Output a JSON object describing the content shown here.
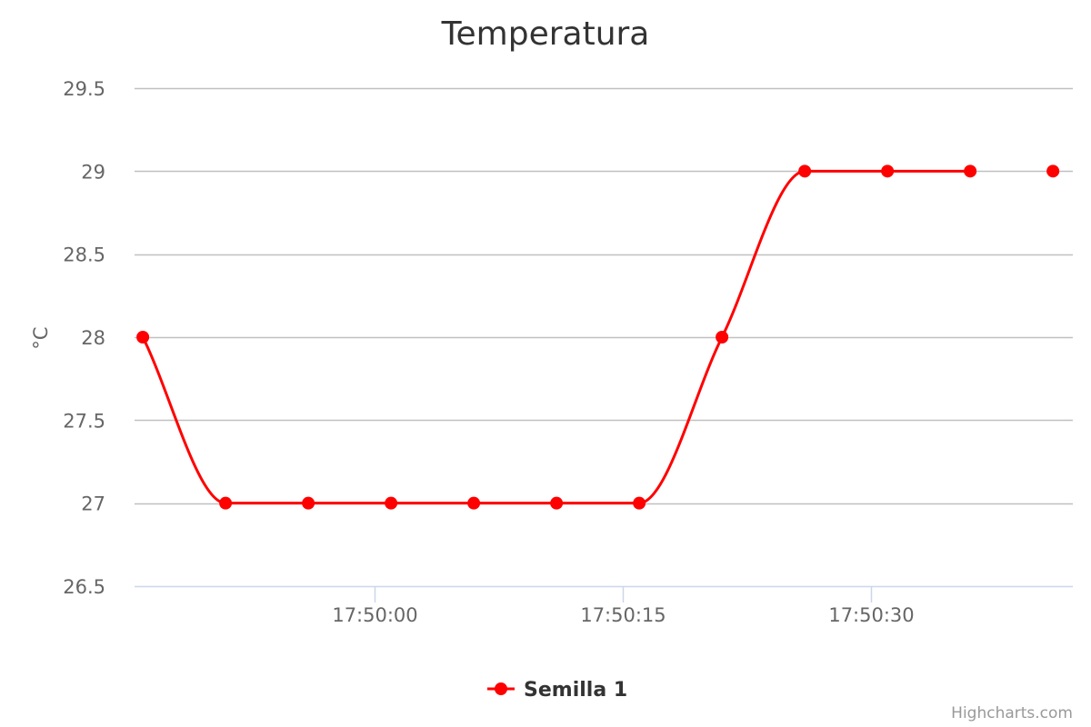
{
  "chart_data": {
    "type": "line",
    "title": "Temperatura",
    "ylabel": "°C",
    "xlabel": "",
    "ylim": [
      26.5,
      29.5
    ],
    "yticks": [
      26.5,
      27,
      27.5,
      28,
      28.5,
      29,
      29.5
    ],
    "ytick_labels": [
      "26.5",
      "27",
      "27.5",
      "28",
      "28.5",
      "29",
      "29.5"
    ],
    "xlim": [
      "17:49:45.5",
      "17:50:42.2"
    ],
    "xticks": [
      "17:50:00",
      "17:50:15",
      "17:50:30"
    ],
    "grid": true,
    "legend_position": "bottom-center",
    "series": [
      {
        "name": "Semilla 1",
        "color": "#ff0000",
        "x": [
          "17:49:46",
          "17:49:51",
          "17:49:56",
          "17:50:01",
          "17:50:06",
          "17:50:11",
          "17:50:16",
          "17:50:21",
          "17:50:26",
          "17:50:31",
          "17:50:36",
          "17:50:41"
        ],
        "values": [
          28,
          27,
          27,
          27,
          27,
          27,
          27,
          28,
          29,
          29,
          29,
          29
        ],
        "line_end_x": "17:50:36"
      }
    ]
  },
  "credits": "Highcharts.com",
  "colors": {
    "series": "#ff0000",
    "grid": "#c0c0c0",
    "axis": "#ccd6eb",
    "text": "#666666",
    "title": "#333333"
  }
}
